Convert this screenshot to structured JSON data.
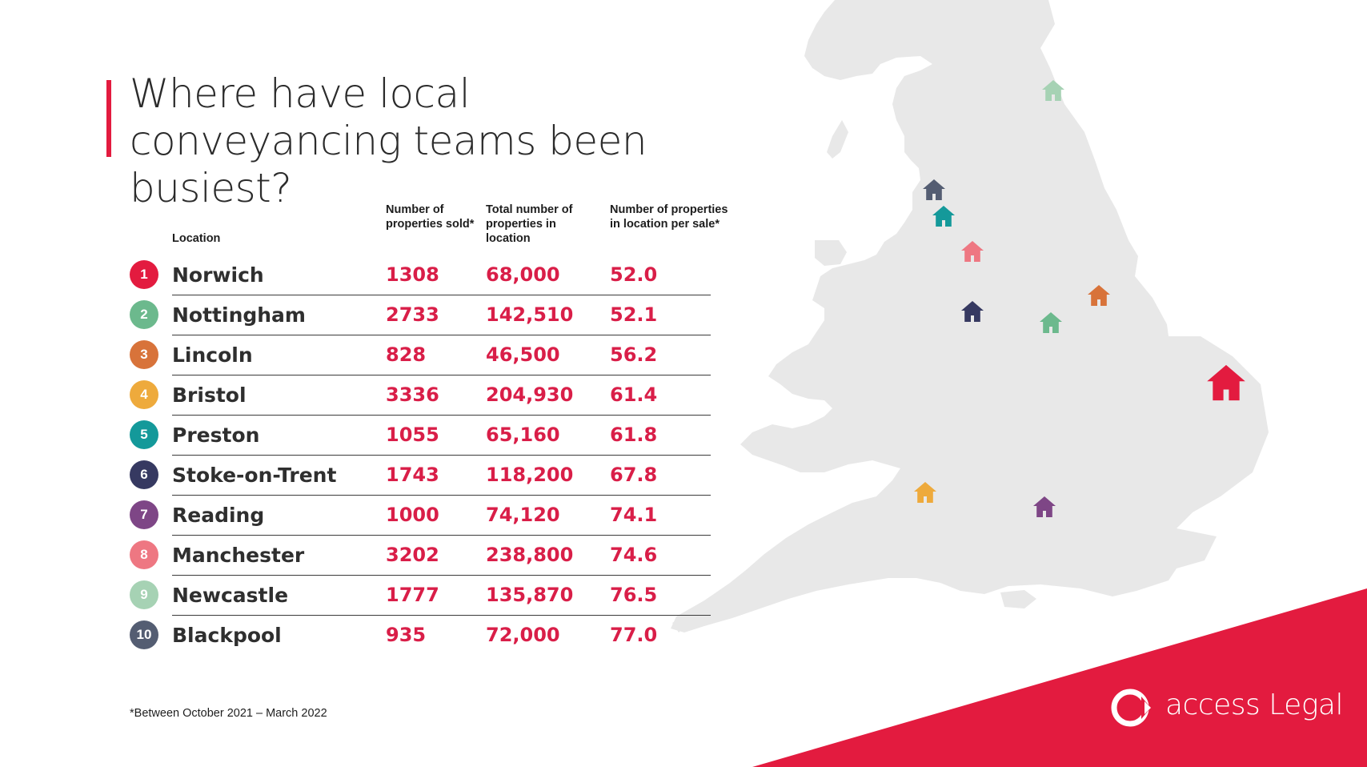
{
  "title": "Where have local conveyancing teams been busiest?",
  "table": {
    "headers": {
      "location": "Location",
      "sold": "Number of properties sold*",
      "total": "Total number of properties in location",
      "per_sale": "Number of properties in location per sale*"
    },
    "rows": [
      {
        "rank": "1",
        "location": "Norwich",
        "sold": "1308",
        "total": "68,000",
        "per_sale": "52.0",
        "color": "#e31b3f"
      },
      {
        "rank": "2",
        "location": "Nottingham",
        "sold": "2733",
        "total": "142,510",
        "per_sale": "52.1",
        "color": "#6cb98d"
      },
      {
        "rank": "3",
        "location": "Lincoln",
        "sold": "828",
        "total": "46,500",
        "per_sale": "56.2",
        "color": "#d8733a"
      },
      {
        "rank": "4",
        "location": "Bristol",
        "sold": "3336",
        "total": "204,930",
        "per_sale": "61.4",
        "color": "#eeaa3c"
      },
      {
        "rank": "5",
        "location": "Preston",
        "sold": "1055",
        "total": "65,160",
        "per_sale": "61.8",
        "color": "#14999a"
      },
      {
        "rank": "6",
        "location": "Stoke-on-Trent",
        "sold": "1743",
        "total": "118,200",
        "per_sale": "67.8",
        "color": "#363961"
      },
      {
        "rank": "7",
        "location": "Reading",
        "sold": "1000",
        "total": "74,120",
        "per_sale": "74.1",
        "color": "#7e4686"
      },
      {
        "rank": "8",
        "location": "Manchester",
        "sold": "3202",
        "total": "238,800",
        "per_sale": "74.6",
        "color": "#ee7782"
      },
      {
        "rank": "9",
        "location": "Newcastle",
        "sold": "1777",
        "total": "135,870",
        "per_sale": "76.5",
        "color": "#a6d2b4"
      },
      {
        "rank": "10",
        "location": "Blackpool",
        "sold": "935",
        "total": "72,000",
        "per_sale": "77.0",
        "color": "#545d72"
      }
    ]
  },
  "footnote": "*Between October 2021 – March 2022",
  "logo": {
    "text": "access Legal",
    "ring_color": "#ffffff"
  },
  "colors": {
    "accent": "#e31b3f",
    "map_land": "#e8e8e8",
    "value_text": "#d91e48"
  },
  "map": {
    "icons": [
      {
        "name": "norwich-house-icon",
        "color": "#e31b3f"
      },
      {
        "name": "nottingham-house-icon",
        "color": "#6cb98d"
      },
      {
        "name": "lincoln-house-icon",
        "color": "#d8733a"
      },
      {
        "name": "bristol-house-icon",
        "color": "#eeaa3c"
      },
      {
        "name": "preston-house-icon",
        "color": "#14999a"
      },
      {
        "name": "stoke-house-icon",
        "color": "#363961"
      },
      {
        "name": "reading-house-icon",
        "color": "#7e4686"
      },
      {
        "name": "manchester-house-icon",
        "color": "#ee7782"
      },
      {
        "name": "newcastle-house-icon",
        "color": "#a6d2b4"
      },
      {
        "name": "blackpool-house-icon",
        "color": "#545d72"
      }
    ]
  }
}
